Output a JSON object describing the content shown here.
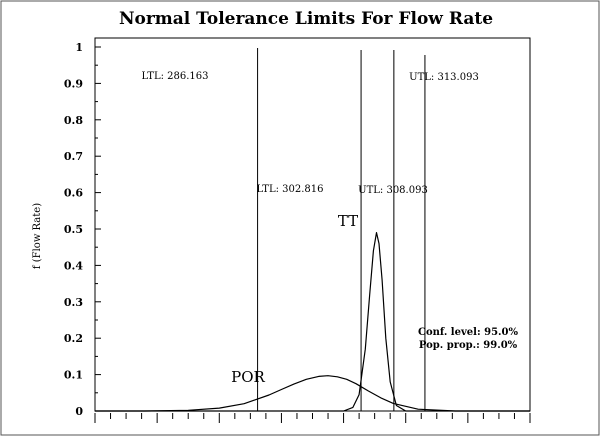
{
  "chart_data": {
    "type": "line",
    "title": "Normal Tolerance Limits For Flow Rate",
    "xlabel": "",
    "ylabel": "f (Flow Rate)",
    "ylim": [
      0,
      1
    ],
    "y_ticks": [
      "0",
      "0.1",
      "0.2",
      "0.3",
      "0.4",
      "0.5",
      "0.6",
      "0.7",
      "0.8",
      "0.9",
      "1"
    ],
    "grid": false,
    "series": [
      {
        "name": "POR",
        "distribution": "normal",
        "x": [
          268,
          275,
          280,
          284,
          288,
          290,
          292,
          294,
          296,
          297.5,
          299,
          300.5,
          302,
          304,
          306,
          308,
          312,
          318
        ],
        "y": [
          0.0,
          0.002,
          0.008,
          0.02,
          0.044,
          0.059,
          0.074,
          0.087,
          0.095,
          0.097,
          0.094,
          0.087,
          0.075,
          0.055,
          0.036,
          0.021,
          0.005,
          0.0
        ]
      },
      {
        "name": "TT",
        "distribution": "normal",
        "x": [
          300,
          301.5,
          302.5,
          303.5,
          304.2,
          304.8,
          305.3,
          305.7,
          306.2,
          306.8,
          307.5,
          308.5,
          310
        ],
        "y": [
          0.0,
          0.01,
          0.045,
          0.17,
          0.32,
          0.44,
          0.49,
          0.46,
          0.36,
          0.2,
          0.08,
          0.015,
          0.0
        ]
      }
    ],
    "limits": [
      {
        "label": "LTL: 286.163",
        "x": 286.163
      },
      {
        "label": "LTL: 302.816",
        "x": 302.816
      },
      {
        "label": "UTL: 308.093",
        "x": 308.093
      },
      {
        "label": "UTL: 313.093",
        "x": 313.093
      }
    ],
    "annotations": {
      "conf_level": "Conf. level: 95.0%",
      "pop_prop": "Pop. prop.: 99.0%"
    },
    "colors": {
      "line": "#000000",
      "background": "#ffffff"
    }
  }
}
